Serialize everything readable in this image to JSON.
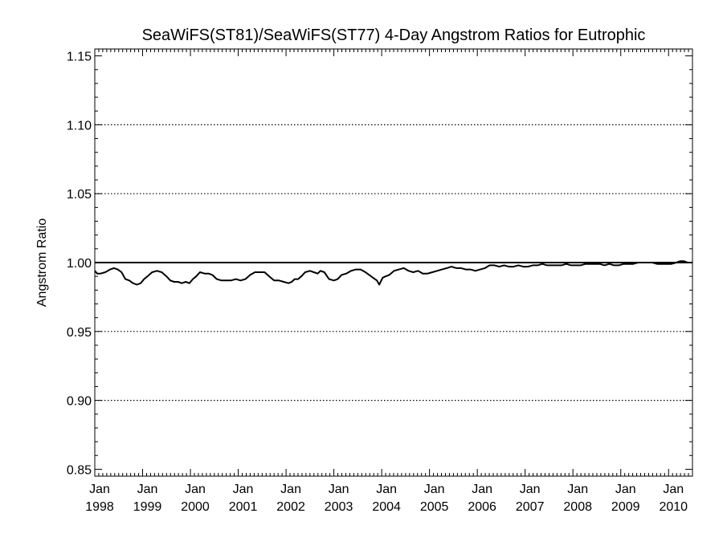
{
  "chart_data": {
    "type": "line",
    "title": "SeaWiFS(ST81)/SeaWiFS(ST77) 4-Day Angstrom Ratios for Eutrophic",
    "ylabel": "Angstrom Ratio",
    "xlabel": "",
    "ylim": [
      0.845,
      1.155
    ],
    "xlim": [
      1998.0,
      2010.5
    ],
    "y_ticks": [
      "0.85",
      "0.90",
      "0.95",
      "1.00",
      "1.05",
      "1.10",
      "1.15"
    ],
    "y_tick_values": [
      0.85,
      0.9,
      0.95,
      1.0,
      1.05,
      1.1,
      1.15
    ],
    "y_gridlines": [
      0.9,
      0.95,
      1.05,
      1.1
    ],
    "grid": "dotted horizontal",
    "x_ticks": [
      {
        "value": 1998.0,
        "month": "Jan",
        "year": "1998"
      },
      {
        "value": 1999.0,
        "month": "Jan",
        "year": "1999"
      },
      {
        "value": 2000.0,
        "month": "Jan",
        "year": "2000"
      },
      {
        "value": 2001.0,
        "month": "Jan",
        "year": "2001"
      },
      {
        "value": 2002.0,
        "month": "Jan",
        "year": "2002"
      },
      {
        "value": 2003.0,
        "month": "Jan",
        "year": "2003"
      },
      {
        "value": 2004.0,
        "month": "Jan",
        "year": "2004"
      },
      {
        "value": 2005.0,
        "month": "Jan",
        "year": "2005"
      },
      {
        "value": 2006.0,
        "month": "Jan",
        "year": "2006"
      },
      {
        "value": 2007.0,
        "month": "Jan",
        "year": "2007"
      },
      {
        "value": 2008.0,
        "month": "Jan",
        "year": "2008"
      },
      {
        "value": 2009.0,
        "month": "Jan",
        "year": "2009"
      },
      {
        "value": 2010.0,
        "month": "Jan",
        "year": "2010"
      }
    ],
    "reference_line": 1.0,
    "series": [
      {
        "x": [
          1998.0,
          1998.05,
          1998.12,
          1998.22,
          1998.32,
          1998.4,
          1998.48,
          1998.56,
          1998.64,
          1998.72,
          1998.8,
          1998.88,
          1998.96,
          1999.03,
          1999.1,
          1999.2,
          1999.3,
          1999.4,
          1999.5,
          1999.58,
          1999.66,
          1999.74,
          1999.82,
          1999.9,
          1999.98,
          2000.05,
          2000.12,
          2000.2,
          2000.3,
          2000.38,
          2000.46,
          2000.55,
          2000.65,
          2000.75,
          2000.85,
          2000.95,
          2001.05,
          2001.15,
          2001.25,
          2001.35,
          2001.45,
          2001.55,
          2001.65,
          2001.75,
          2001.85,
          2001.95,
          2002.05,
          2002.12,
          2002.18,
          2002.25,
          2002.32,
          2002.4,
          2002.5,
          2002.58,
          2002.66,
          2002.72,
          2002.8,
          2002.9,
          2003.0,
          2003.08,
          2003.16,
          2003.26,
          2003.36,
          2003.46,
          2003.56,
          2003.66,
          2003.74,
          2003.82,
          2003.9,
          2003.95,
          2004.02,
          2004.08,
          2004.16,
          2004.26,
          2004.36,
          2004.46,
          2004.56,
          2004.66,
          2004.76,
          2004.86,
          2004.96,
          2005.06,
          2005.16,
          2005.26,
          2005.36,
          2005.46,
          2005.56,
          2005.66,
          2005.76,
          2005.86,
          2005.96,
          2006.06,
          2006.16,
          2006.26,
          2006.36,
          2006.46,
          2006.56,
          2006.66,
          2006.76,
          2006.86,
          2006.96,
          2007.06,
          2007.16,
          2007.26,
          2007.36,
          2007.46,
          2007.56,
          2007.66,
          2007.76,
          2007.86,
          2007.96,
          2008.06,
          2008.16,
          2008.26,
          2008.36,
          2008.46,
          2008.56,
          2008.66,
          2008.76,
          2008.86,
          2008.96,
          2009.06,
          2009.16,
          2009.26,
          2009.36,
          2009.46,
          2009.56,
          2009.66,
          2009.76,
          2009.86,
          2009.96,
          2010.06,
          2010.16,
          2010.24,
          2010.32,
          2010.4,
          2010.46
        ],
        "y": [
          0.994,
          0.992,
          0.992,
          0.993,
          0.995,
          0.996,
          0.995,
          0.993,
          0.988,
          0.987,
          0.985,
          0.984,
          0.985,
          0.988,
          0.99,
          0.993,
          0.994,
          0.993,
          0.99,
          0.987,
          0.986,
          0.986,
          0.985,
          0.986,
          0.985,
          0.988,
          0.99,
          0.993,
          0.992,
          0.992,
          0.991,
          0.988,
          0.987,
          0.987,
          0.987,
          0.988,
          0.987,
          0.988,
          0.991,
          0.993,
          0.993,
          0.993,
          0.99,
          0.987,
          0.987,
          0.986,
          0.985,
          0.986,
          0.988,
          0.988,
          0.99,
          0.993,
          0.994,
          0.993,
          0.992,
          0.994,
          0.993,
          0.988,
          0.987,
          0.988,
          0.991,
          0.992,
          0.994,
          0.995,
          0.995,
          0.993,
          0.991,
          0.989,
          0.987,
          0.984,
          0.989,
          0.99,
          0.991,
          0.994,
          0.995,
          0.996,
          0.994,
          0.993,
          0.994,
          0.992,
          0.992,
          0.993,
          0.994,
          0.995,
          0.996,
          0.997,
          0.996,
          0.996,
          0.995,
          0.995,
          0.994,
          0.995,
          0.996,
          0.998,
          0.998,
          0.997,
          0.998,
          0.997,
          0.997,
          0.998,
          0.997,
          0.997,
          0.998,
          0.998,
          0.999,
          0.998,
          0.998,
          0.998,
          0.998,
          0.999,
          0.998,
          0.998,
          0.998,
          0.999,
          0.999,
          0.999,
          0.999,
          0.998,
          0.999,
          0.998,
          0.998,
          0.999,
          0.999,
          0.999,
          1.0,
          1.0,
          1.0,
          1.0,
          0.999,
          0.999,
          0.999,
          0.999,
          1.0,
          1.001,
          1.001,
          1.0,
          1.0
        ]
      }
    ]
  }
}
